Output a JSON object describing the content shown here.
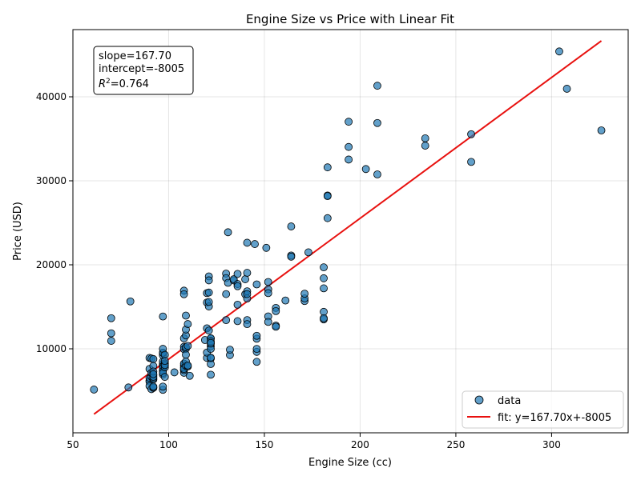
{
  "chart_data": {
    "type": "scatter",
    "title": "Engine Size vs Price with Linear Fit",
    "xlabel": "Engine Size (cc)",
    "ylabel": "Price (USD)",
    "xlim": [
      50,
      340
    ],
    "ylim": [
      0,
      48000
    ],
    "xticks": [
      50,
      100,
      150,
      200,
      250,
      300
    ],
    "yticks": [
      10000,
      20000,
      30000,
      40000
    ],
    "grid": true,
    "legend_position": "bottom-right",
    "colors": {
      "points": "#1f77b4",
      "fit": "#e8110f"
    },
    "series": [
      {
        "name": "data",
        "points": [
          [
            61,
            5151
          ],
          [
            70,
            13645
          ],
          [
            70,
            11845
          ],
          [
            70,
            10945
          ],
          [
            79,
            5399
          ],
          [
            80,
            15645
          ],
          [
            90,
            8916
          ],
          [
            90,
            6229
          ],
          [
            90,
            6095
          ],
          [
            90,
            5572
          ],
          [
            90,
            7609
          ],
          [
            90,
            6529
          ],
          [
            91,
            5195
          ],
          [
            91,
            6692
          ],
          [
            91,
            7129
          ],
          [
            91,
            8845
          ],
          [
            92,
            6855
          ],
          [
            92,
            5348
          ],
          [
            92,
            6338
          ],
          [
            92,
            6488
          ],
          [
            92,
            7957
          ],
          [
            92,
            6669
          ],
          [
            92,
            8778
          ],
          [
            92,
            5389
          ],
          [
            92,
            7299
          ],
          [
            92,
            5499
          ],
          [
            92,
            6989
          ],
          [
            97,
            7775
          ],
          [
            97,
            9495
          ],
          [
            97,
            7995
          ],
          [
            97,
            7395
          ],
          [
            97,
            7999
          ],
          [
            97,
            8195
          ],
          [
            97,
            8495
          ],
          [
            97,
            9233
          ],
          [
            97,
            7898
          ],
          [
            97,
            7738
          ],
          [
            97,
            5118
          ],
          [
            97,
            5499
          ],
          [
            97,
            6938
          ],
          [
            97,
            7349
          ],
          [
            97,
            9538
          ],
          [
            97,
            13845
          ],
          [
            97,
            7126
          ],
          [
            97,
            9995
          ],
          [
            98,
            8249
          ],
          [
            98,
            7799
          ],
          [
            98,
            8058
          ],
          [
            98,
            9279
          ],
          [
            98,
            8558
          ],
          [
            98,
            6649
          ],
          [
            103,
            7198
          ],
          [
            108,
            7150
          ],
          [
            108,
            7463
          ],
          [
            108,
            8013
          ],
          [
            108,
            7775
          ],
          [
            108,
            8238
          ],
          [
            108,
            10245
          ],
          [
            108,
            16925
          ],
          [
            108,
            16500
          ],
          [
            108,
            11245
          ],
          [
            108,
            9960
          ],
          [
            108,
            7609
          ],
          [
            109,
            11595
          ],
          [
            109,
            12290
          ],
          [
            109,
            7975
          ],
          [
            109,
            13950
          ],
          [
            109,
            8495
          ],
          [
            109,
            9995
          ],
          [
            109,
            10198
          ],
          [
            109,
            9295
          ],
          [
            110,
            12945
          ],
          [
            110,
            10345
          ],
          [
            110,
            7895
          ],
          [
            110,
            8013
          ],
          [
            111,
            6785
          ],
          [
            119,
            11048
          ],
          [
            120,
            8921
          ],
          [
            120,
            9549
          ],
          [
            120,
            12440
          ],
          [
            120,
            16630
          ],
          [
            120,
            15510
          ],
          [
            121,
            16695
          ],
          [
            121,
            18620
          ],
          [
            121,
            18150
          ],
          [
            121,
            15040
          ],
          [
            121,
            15580
          ],
          [
            121,
            12170
          ],
          [
            122,
            8845
          ],
          [
            122,
            10295
          ],
          [
            122,
            11199
          ],
          [
            122,
            10595
          ],
          [
            122,
            9989
          ],
          [
            122,
            8189
          ],
          [
            122,
            6918
          ],
          [
            122,
            11259
          ],
          [
            122,
            10898
          ],
          [
            122,
            8948
          ],
          [
            122,
            10698
          ],
          [
            130,
            16515
          ],
          [
            130,
            13415
          ],
          [
            130,
            18950
          ],
          [
            130,
            18420
          ],
          [
            131,
            23875
          ],
          [
            131,
            17859
          ],
          [
            132,
            9258
          ],
          [
            132,
            9895
          ],
          [
            134,
            18150
          ],
          [
            134,
            18280
          ],
          [
            136,
            15250
          ],
          [
            136,
            17710
          ],
          [
            136,
            18920
          ],
          [
            136,
            13295
          ],
          [
            136,
            17450
          ],
          [
            140,
            16500
          ],
          [
            140,
            18280
          ],
          [
            141,
            16845
          ],
          [
            141,
            19045
          ],
          [
            141,
            13415
          ],
          [
            141,
            12940
          ],
          [
            141,
            15985
          ],
          [
            141,
            16515
          ],
          [
            141,
            22625
          ],
          [
            145,
            22470
          ],
          [
            146,
            11199
          ],
          [
            146,
            9639
          ],
          [
            146,
            9989
          ],
          [
            146,
            11549
          ],
          [
            146,
            17669
          ],
          [
            146,
            8449
          ],
          [
            151,
            22018
          ],
          [
            152,
            13860
          ],
          [
            152,
            17075
          ],
          [
            152,
            16630
          ],
          [
            152,
            17950
          ],
          [
            152,
            13200
          ],
          [
            156,
            14869
          ],
          [
            156,
            14489
          ],
          [
            156,
            12764
          ],
          [
            156,
            12629
          ],
          [
            161,
            15750
          ],
          [
            164,
            24565
          ],
          [
            164,
            21105
          ],
          [
            164,
            20970
          ],
          [
            171,
            15690
          ],
          [
            171,
            15998
          ],
          [
            171,
            16558
          ],
          [
            173,
            21485
          ],
          [
            181,
            17199
          ],
          [
            181,
            19699
          ],
          [
            181,
            18399
          ],
          [
            181,
            14399
          ],
          [
            181,
            13499
          ],
          [
            181,
            13645
          ],
          [
            183,
            28248
          ],
          [
            183,
            28176
          ],
          [
            183,
            31600
          ],
          [
            183,
            25552
          ],
          [
            194,
            34028
          ],
          [
            194,
            37028
          ],
          [
            194,
            32528
          ],
          [
            203,
            31400
          ],
          [
            209,
            36880
          ],
          [
            209,
            41315
          ],
          [
            209,
            30760
          ],
          [
            234,
            34184
          ],
          [
            234,
            35056
          ],
          [
            258,
            32250
          ],
          [
            258,
            35550
          ],
          [
            304,
            45400
          ],
          [
            308,
            40960
          ],
          [
            326,
            36000
          ]
        ]
      },
      {
        "name": "fit: y=167.70x+-8005",
        "slope": 167.7,
        "intercept": -8005,
        "x_range": [
          61,
          326
        ]
      }
    ],
    "annotation": {
      "slope_text": "slope=167.70",
      "intercept_text": "intercept=-8005",
      "r2_label": "R",
      "r2_value": "=0.764"
    }
  }
}
